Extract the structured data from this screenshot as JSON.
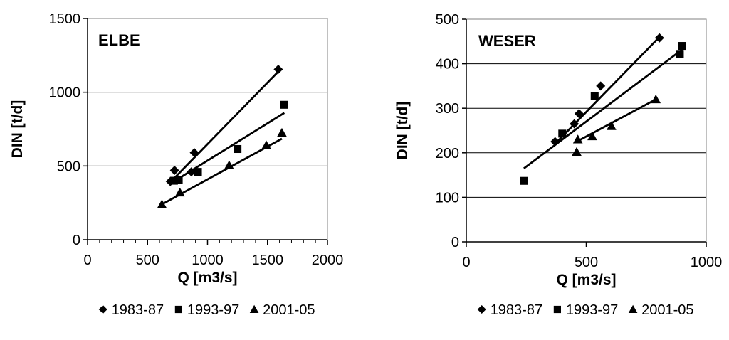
{
  "chart_data": [
    {
      "type": "scatter",
      "title": "ELBE",
      "xlabel": "Q [m3/s]",
      "ylabel": "DIN [t/d]",
      "xlim": [
        0,
        2000
      ],
      "ylim": [
        0,
        1500
      ],
      "xticks": [
        "0",
        "500",
        "1000",
        "1500",
        "2000"
      ],
      "yticks": [
        "0",
        "500",
        "1000",
        "1500"
      ],
      "grid": "horizontal",
      "legend_position": "bottom",
      "series": [
        {
          "name": "1983-87",
          "marker": "diamond",
          "points": [
            [
              690,
              395
            ],
            [
              725,
              470
            ],
            [
              865,
              460
            ],
            [
              890,
              590
            ],
            [
              1590,
              1155
            ]
          ],
          "trend": [
            [
              690,
              390
            ],
            [
              1590,
              1140
            ]
          ]
        },
        {
          "name": "1993-97",
          "marker": "square",
          "points": [
            [
              720,
              400
            ],
            [
              760,
              405
            ],
            [
              920,
              460
            ],
            [
              1250,
              615
            ],
            [
              1640,
              915
            ]
          ],
          "trend": [
            [
              720,
              395
            ],
            [
              1640,
              860
            ]
          ]
        },
        {
          "name": "2001-05",
          "marker": "triangle",
          "points": [
            [
              620,
              240
            ],
            [
              770,
              320
            ],
            [
              1180,
              505
            ],
            [
              1490,
              640
            ],
            [
              1620,
              725
            ]
          ],
          "trend": [
            [
              620,
              240
            ],
            [
              1620,
              685
            ]
          ]
        }
      ]
    },
    {
      "type": "scatter",
      "title": "WESER",
      "xlabel": "Q [m3/s]",
      "ylabel": "DIN [t/d]",
      "xlim": [
        0,
        1000
      ],
      "ylim": [
        0,
        500
      ],
      "xticks": [
        "0",
        "500",
        "1000"
      ],
      "yticks": [
        "0",
        "100",
        "200",
        "300",
        "400",
        "500"
      ],
      "grid": "horizontal",
      "legend_position": "bottom",
      "series": [
        {
          "name": "1983-87",
          "marker": "diamond",
          "points": [
            [
              370,
              225
            ],
            [
              450,
              265
            ],
            [
              470,
              288
            ],
            [
              560,
              350
            ],
            [
              805,
              458
            ]
          ],
          "trend": [
            [
              370,
              220
            ],
            [
              805,
              460
            ]
          ]
        },
        {
          "name": "1993-97",
          "marker": "square",
          "points": [
            [
              240,
              137
            ],
            [
              400,
              243
            ],
            [
              535,
              328
            ],
            [
              890,
              422
            ],
            [
              900,
              440
            ]
          ],
          "trend": [
            [
              240,
              165
            ],
            [
              900,
              432
            ]
          ]
        },
        {
          "name": "2001-05",
          "marker": "triangle",
          "points": [
            [
              460,
              202
            ],
            [
              465,
              230
            ],
            [
              525,
              237
            ],
            [
              605,
              260
            ],
            [
              790,
              320
            ]
          ],
          "trend": [
            [
              460,
              225
            ],
            [
              790,
              320
            ]
          ]
        }
      ]
    }
  ]
}
